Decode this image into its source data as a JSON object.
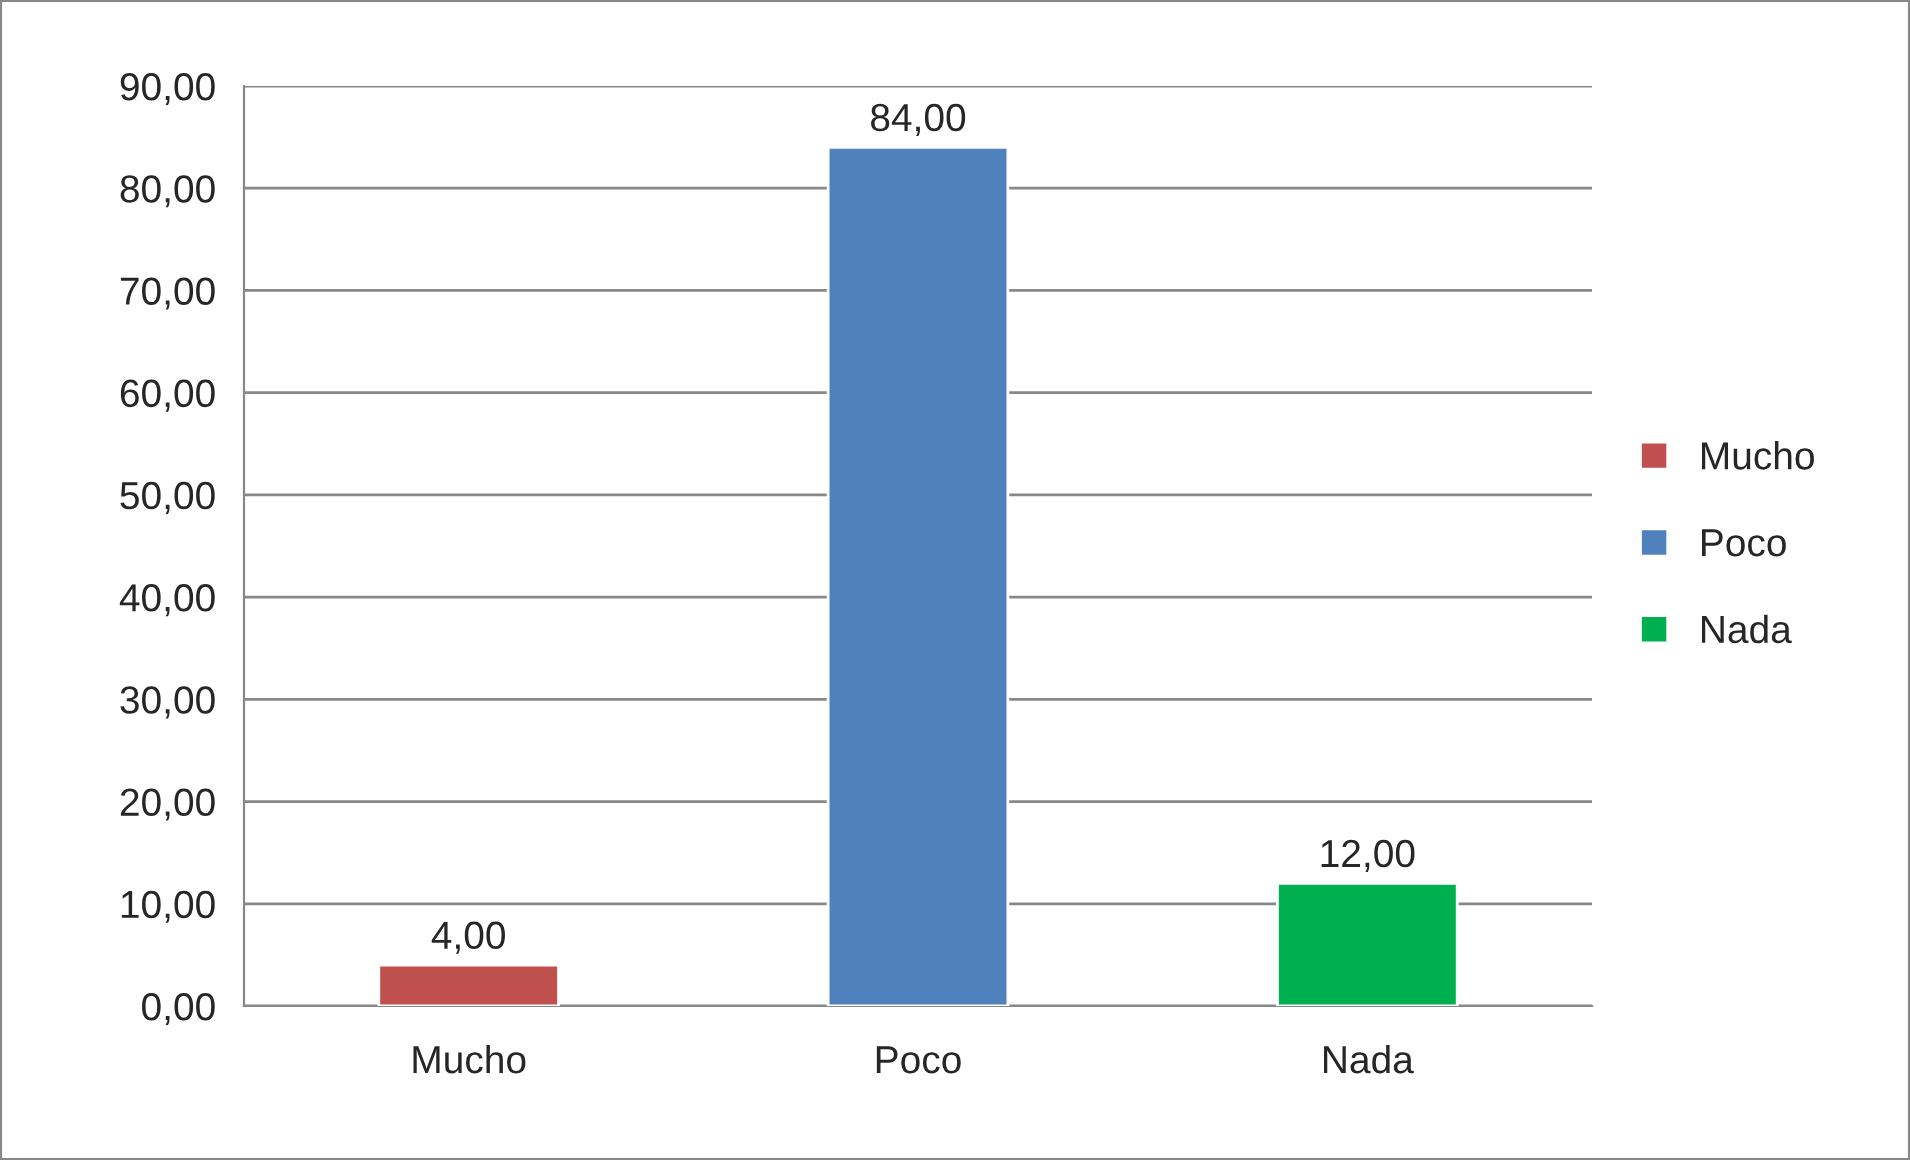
{
  "chart_data": {
    "type": "bar",
    "categories": [
      "Mucho",
      "Poco",
      "Nada"
    ],
    "series": [
      {
        "name": "Mucho",
        "color": "#c0504d",
        "values": [
          4,
          null,
          null
        ],
        "value_labels": [
          "4,00",
          null,
          null
        ]
      },
      {
        "name": "Poco",
        "color": "#4f81bd",
        "values": [
          null,
          84,
          null
        ],
        "value_labels": [
          null,
          "84,00",
          null
        ]
      },
      {
        "name": "Nada",
        "color": "#00b050",
        "values": [
          null,
          null,
          12
        ],
        "value_labels": [
          null,
          null,
          "12,00"
        ]
      }
    ],
    "ylim": [
      0,
      90
    ],
    "yticks": [
      {
        "value": 0,
        "label": "0,00"
      },
      {
        "value": 10,
        "label": "10,00"
      },
      {
        "value": 20,
        "label": "20,00"
      },
      {
        "value": 30,
        "label": "30,00"
      },
      {
        "value": 40,
        "label": "40,00"
      },
      {
        "value": 50,
        "label": "50,00"
      },
      {
        "value": 60,
        "label": "60,00"
      },
      {
        "value": 70,
        "label": "70,00"
      },
      {
        "value": 80,
        "label": "80,00"
      },
      {
        "value": 90,
        "label": "90,00"
      }
    ],
    "grid": "y",
    "legend": "right"
  }
}
